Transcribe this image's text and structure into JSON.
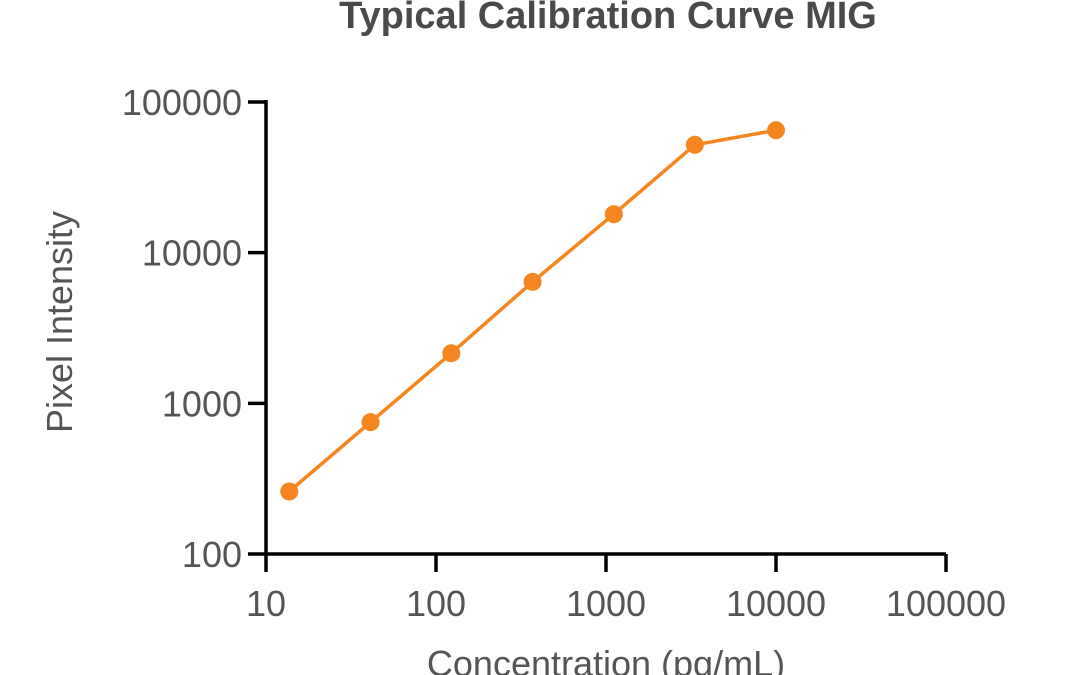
{
  "chart_data": {
    "type": "line",
    "title": "Typical Calibration Curve MIG",
    "xlabel": "Concentration (pg/mL)",
    "ylabel": "Pixel Intensity",
    "x_scale": "log",
    "y_scale": "log",
    "xlim": [
      10,
      100000
    ],
    "ylim": [
      100,
      100000
    ],
    "x_ticks": [
      "10",
      "100",
      "1000",
      "10000",
      "100000"
    ],
    "y_ticks": [
      "100",
      "1000",
      "10000",
      "100000"
    ],
    "grid": false,
    "series": [
      {
        "color": "#f5851f",
        "x": [
          13.7,
          41.2,
          123,
          370,
          1111,
          3333,
          10000
        ],
        "y": [
          260,
          750,
          2150,
          6400,
          18000,
          52000,
          65000
        ]
      }
    ]
  }
}
